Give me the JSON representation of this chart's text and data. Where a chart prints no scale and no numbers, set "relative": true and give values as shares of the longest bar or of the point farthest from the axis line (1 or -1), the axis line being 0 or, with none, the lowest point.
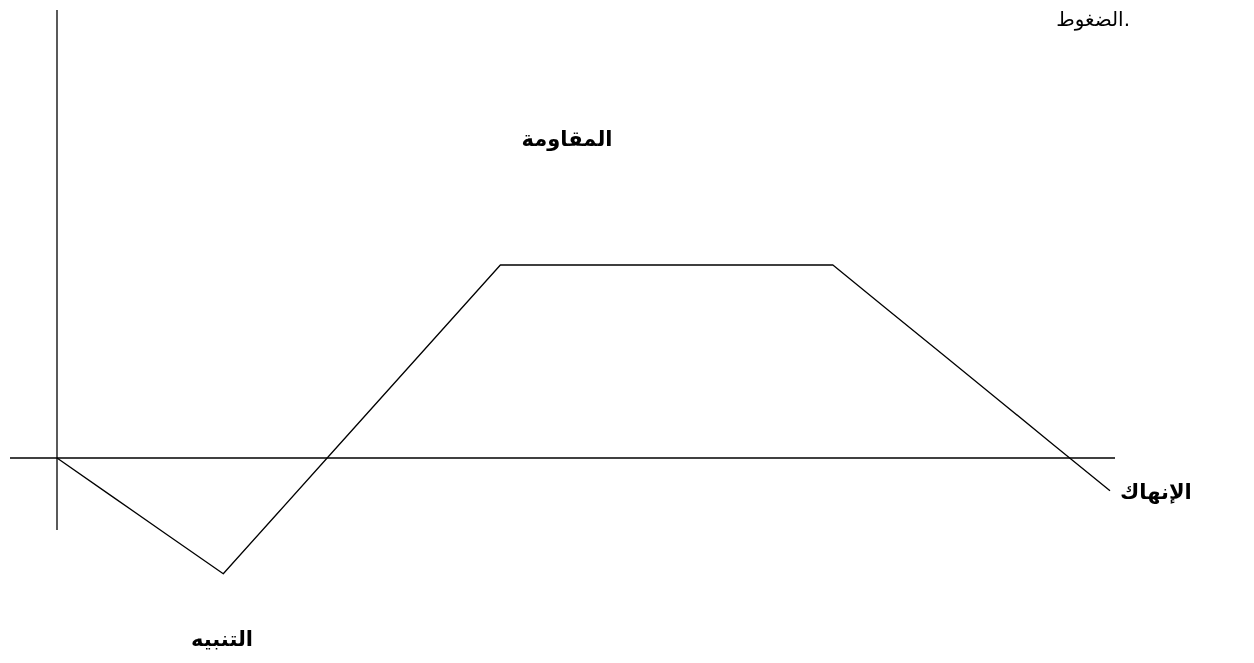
{
  "chart_data": {
    "type": "line",
    "relative": true,
    "categories": [
      null,
      null,
      null,
      null,
      null,
      null,
      null,
      null,
      null,
      null,
      null,
      null,
      null,
      null,
      null,
      null,
      null,
      null,
      null,
      null
    ],
    "series": [
      {
        "color": "#000000",
        "values": [
          0,
          -0.2,
          -0.4,
          -0.6,
          -0.28,
          0.04,
          0.36,
          0.68,
          1,
          1,
          1,
          1,
          1,
          1,
          1,
          0.766,
          0.532,
          0.298,
          0.064,
          -0.17
        ]
      }
    ],
    "annotations": [
      "الضغوط.",
      "المقاومة",
      "التنبيه",
      "الإنهاك"
    ],
    "marker": "none",
    "line_style": "solid"
  }
}
